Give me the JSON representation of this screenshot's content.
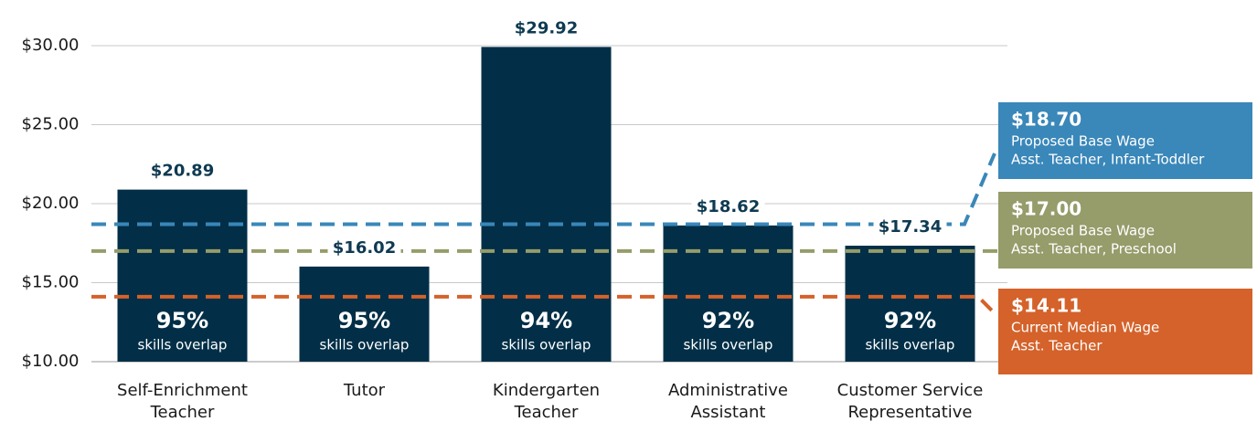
{
  "chart_data": {
    "type": "bar",
    "categories": [
      "Self-Enrichment Teacher",
      "Tutor",
      "Kindergarten Teacher",
      "Administrative Assistant",
      "Customer Service Representative"
    ],
    "values": [
      20.89,
      16.02,
      29.92,
      18.62,
      17.34
    ],
    "value_labels": [
      "$20.89",
      "$16.02",
      "$29.92",
      "$18.62",
      "$17.34"
    ],
    "color": "#022f47",
    "overlap": [
      95,
      95,
      94,
      92,
      92
    ],
    "overlap_labels": [
      "95%",
      "95%",
      "94%",
      "92%",
      "92%"
    ],
    "overlap_caption": "skills overlap",
    "ylim": [
      10,
      30
    ],
    "yticks": [
      {
        "value": 10,
        "label": "$10.00"
      },
      {
        "value": 15,
        "label": "$15.00"
      },
      {
        "value": 20,
        "label": "$20.00"
      },
      {
        "value": 25,
        "label": "$25.00"
      },
      {
        "value": 30,
        "label": "$30.00"
      }
    ],
    "grid": true,
    "reference_lines": [
      {
        "value": 18.7,
        "label": "$18.70",
        "lines": [
          "Proposed Base Wage",
          "Asst. Teacher, Infant-Toddler"
        ],
        "color": "#3a87b9"
      },
      {
        "value": 17.0,
        "label": "$17.00",
        "lines": [
          "Proposed Base Wage",
          "Asst. Teacher, Preschool"
        ],
        "color": "#969c6a"
      },
      {
        "value": 14.11,
        "label": "$14.11",
        "lines": [
          "Current Median Wage",
          "Asst. Teacher"
        ],
        "color": "#d4622a"
      }
    ]
  }
}
